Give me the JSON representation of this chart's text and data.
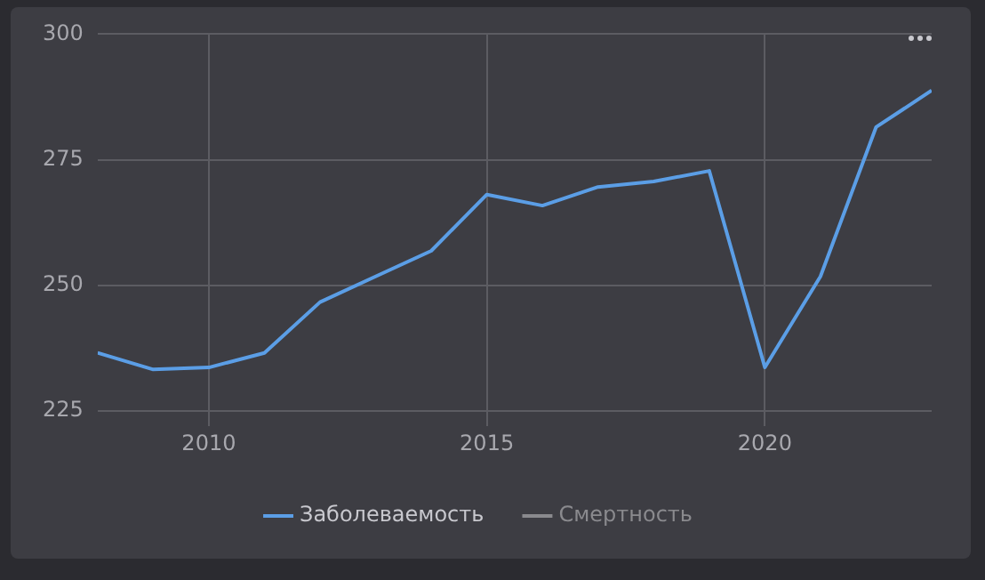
{
  "chart_data": {
    "type": "line",
    "x": [
      2008,
      2009,
      2010,
      2011,
      2012,
      2013,
      2014,
      2015,
      2016,
      2017,
      2018,
      2019,
      2020,
      2021,
      2022,
      2023
    ],
    "series": [
      {
        "name": "Заболеваемость",
        "color": "#5b9ee6",
        "values": [
          236.6,
          233.3,
          233.7,
          236.6,
          246.7,
          251.8,
          256.9,
          268.1,
          265.9,
          269.6,
          270.7,
          272.8,
          233.7,
          251.8,
          281.5,
          288.8
        ]
      },
      {
        "name": "Смертность",
        "color": "#8a8a8e",
        "values": [
          null,
          null,
          null,
          null,
          null,
          null,
          null,
          null,
          null,
          null,
          null,
          null,
          null,
          null,
          null,
          null
        ]
      }
    ],
    "xlim": [
      2008,
      2023
    ],
    "xticks": [
      2010,
      2015,
      2020
    ],
    "ylim": [
      222,
      300
    ],
    "yticks": [
      225,
      250,
      275,
      300
    ],
    "grid": true,
    "legend": "bottom",
    "marker": "none",
    "line_style": "solid"
  }
}
